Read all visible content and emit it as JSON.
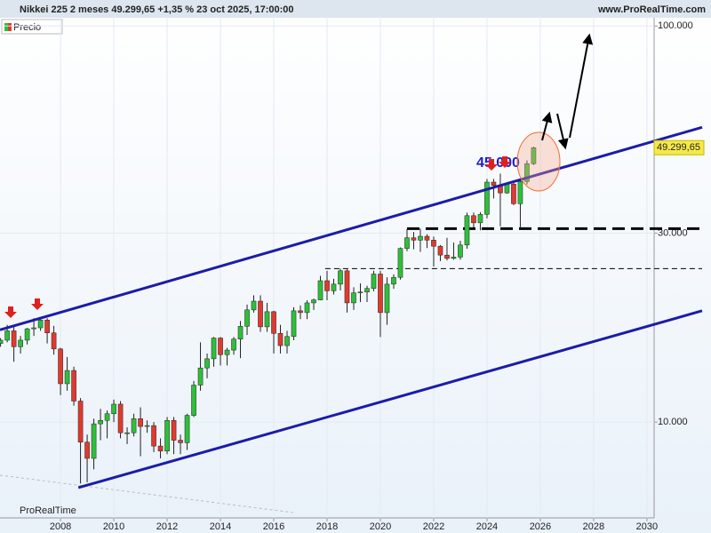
{
  "chart_data": {
    "type": "candlestick",
    "title": "Nikkei 225 2 meses 49.299,65 +1,35 % 23 oct 2025, 17:00:00",
    "source": "www.ProRealTime.com",
    "legend": "Precio",
    "brand": "ProRealTime",
    "log_scale": true,
    "xlim": [
      2005.73,
      2030.27
    ],
    "ylim": [
      5730,
      106000
    ],
    "xticks": [
      2008,
      2010,
      2012,
      2014,
      2016,
      2018,
      2020,
      2022,
      2024,
      2026,
      2028,
      2030
    ],
    "yticks": [
      {
        "value": 10000,
        "label": "10.000"
      },
      {
        "value": 30000,
        "label": "30.000"
      },
      {
        "value": 100000,
        "label": "100.000"
      }
    ],
    "up_color": "#2fbf3a",
    "down_color": "#e03a2e",
    "x": [
      2005.75,
      2006,
      2006.25,
      2006.5,
      2006.75,
      2007,
      2007.25,
      2007.5,
      2007.75,
      2008,
      2008.25,
      2008.5,
      2008.75,
      2009,
      2009.25,
      2009.5,
      2009.75,
      2010,
      2010.25,
      2010.5,
      2010.75,
      2011,
      2011.25,
      2011.5,
      2011.75,
      2012,
      2012.25,
      2012.5,
      2012.75,
      2013,
      2013.25,
      2013.5,
      2013.75,
      2014,
      2014.25,
      2014.5,
      2014.75,
      2015,
      2015.25,
      2015.5,
      2015.75,
      2016,
      2016.25,
      2016.5,
      2016.75,
      2017,
      2017.25,
      2017.5,
      2017.75,
      2018,
      2018.25,
      2018.5,
      2018.75,
      2019,
      2019.25,
      2019.5,
      2019.75,
      2020,
      2020.25,
      2020.5,
      2020.75,
      2021,
      2021.25,
      2021.5,
      2021.75,
      2022,
      2022.25,
      2022.5,
      2022.75,
      2023,
      2023.25,
      2023.5,
      2023.75,
      2024,
      2024.25,
      2024.5,
      2024.75,
      2025,
      2025.25,
      2025.5,
      2025.75
    ],
    "open": [
      15800,
      16100,
      17000,
      15500,
      16100,
      17200,
      17300,
      18100,
      16800,
      15300,
      12500,
      13500,
      11300,
      8900,
      8100,
      9900,
      10100,
      10500,
      11100,
      9400,
      9400,
      10200,
      9750,
      9800,
      8700,
      8450,
      10100,
      9000,
      8870,
      10400,
      12400,
      13700,
      14450,
      16300,
      14800,
      15200,
      16200,
      17450,
      19200,
      20200,
      17400,
      19000,
      16750,
      15600,
      16450,
      19100,
      18900,
      20000,
      20350,
      22750,
      21450,
      22300,
      24100,
      20000,
      21200,
      21300,
      21750,
      23650,
      18900,
      22300,
      23200,
      27450,
      29200,
      28800,
      29450,
      28800,
      27800,
      26400,
      25900,
      26100,
      28000,
      33200,
      31850,
      33450,
      40350,
      39600,
      37900,
      39900,
      35600,
      40500,
      44900
    ],
    "high": [
      16300,
      17600,
      17600,
      16500,
      17300,
      18300,
      18300,
      18300,
      17500,
      15400,
      14600,
      13800,
      11500,
      9300,
      10200,
      10800,
      10700,
      11400,
      11300,
      9700,
      10500,
      10900,
      10100,
      10000,
      9100,
      10300,
      10300,
      9300,
      10500,
      12700,
      15900,
      14900,
      16400,
      16400,
      15400,
      16400,
      18000,
      19800,
      20900,
      20900,
      20000,
      19100,
      17600,
      17000,
      19500,
      19700,
      20300,
      20500,
      23400,
      24100,
      23000,
      24400,
      24300,
      21900,
      22400,
      22100,
      24100,
      24100,
      23200,
      23600,
      27600,
      30700,
      30200,
      30800,
      29800,
      29400,
      28000,
      29200,
      28400,
      28700,
      33800,
      33800,
      33900,
      41100,
      41100,
      42400,
      40300,
      40300,
      40900,
      45800,
      49600
    ],
    "low": [
      15500,
      15900,
      14200,
      14900,
      15700,
      16500,
      17000,
      15800,
      14800,
      11700,
      12000,
      11000,
      7000,
      7050,
      7600,
      9000,
      9100,
      10000,
      9100,
      8800,
      9200,
      8200,
      9400,
      8400,
      8100,
      8300,
      8300,
      8300,
      8500,
      10300,
      12000,
      12900,
      13800,
      13900,
      13900,
      14800,
      14500,
      16600,
      18900,
      16900,
      16900,
      14900,
      14900,
      14900,
      16100,
      18200,
      18200,
      19200,
      20300,
      20300,
      21000,
      21500,
      18900,
      19200,
      20100,
      20100,
      21400,
      16400,
      17600,
      21700,
      22900,
      27000,
      27300,
      26900,
      27500,
      24700,
      25500,
      25600,
      25700,
      25700,
      27400,
      31000,
      30500,
      32700,
      36700,
      31200,
      37700,
      35300,
      30800,
      39800,
      44600
    ],
    "close": [
      16100,
      17000,
      15500,
      16100,
      17200,
      17300,
      18100,
      16800,
      15300,
      12500,
      13500,
      11300,
      8900,
      8100,
      9900,
      10100,
      10500,
      11100,
      9400,
      9400,
      10200,
      9750,
      9800,
      8700,
      8450,
      10100,
      9000,
      8870,
      10400,
      12400,
      13700,
      14450,
      16300,
      14800,
      15200,
      16200,
      17450,
      19200,
      20200,
      17400,
      19000,
      16750,
      15600,
      16450,
      19100,
      18900,
      20000,
      20350,
      22750,
      21450,
      22300,
      24100,
      20000,
      21200,
      21300,
      21750,
      23650,
      18900,
      22300,
      23200,
      27450,
      29200,
      28800,
      29450,
      28800,
      27800,
      26400,
      25900,
      26100,
      28000,
      33200,
      31850,
      33450,
      40350,
      39600,
      37900,
      39900,
      35600,
      40500,
      44900,
      49299.65
    ],
    "last_label": "49.299,65",
    "annotation": {
      "text": "45.000",
      "x": 2023.6,
      "y": 45000
    },
    "channel_color": "#1c1ca8",
    "channel": [
      {
        "x": [
          2005.73,
          2032.07
        ],
        "y": [
          17100,
          55500
        ]
      },
      {
        "x": [
          2008.67,
          2032.07
        ],
        "y": [
          6830,
          19100
        ]
      }
    ],
    "levels": [
      {
        "x": [
          2021.0,
          2032.07
        ],
        "y": 30800,
        "width": 3
      },
      {
        "x": [
          2017.93,
          2032.07
        ],
        "y": 24400,
        "width": 1
      }
    ]
  }
}
